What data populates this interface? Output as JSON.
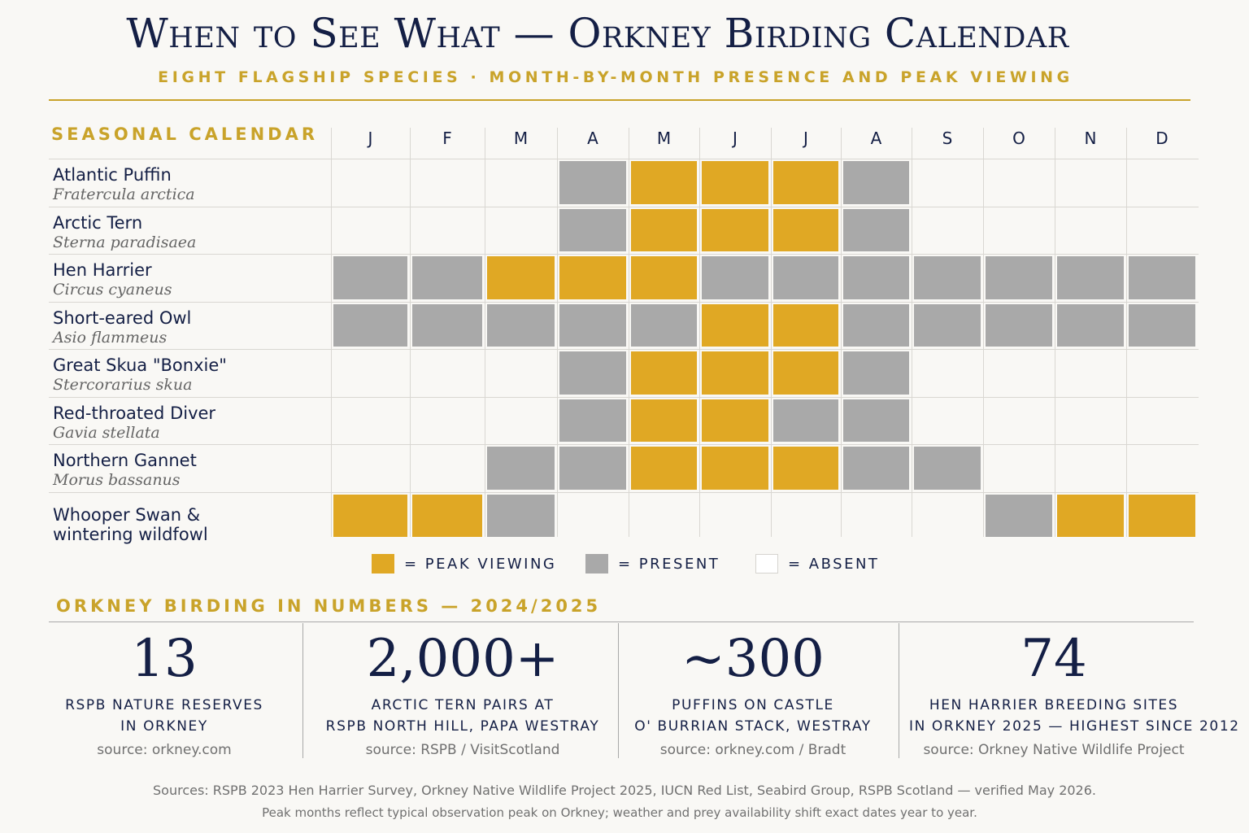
{
  "header": {
    "title": "When to See What — Orkney Birding Calendar",
    "subtitle": "EIGHT FLAGSHIP SPECIES · MONTH-BY-MONTH PRESENCE AND PEAK VIEWING"
  },
  "calendar_title": "SEASONAL CALENDAR",
  "colors": {
    "peak": "#e0a824",
    "present": "#a9a9a9",
    "absent": "#faf9f7",
    "accent": "#c9a32a",
    "navy": "#141f45"
  },
  "chart_data": {
    "type": "heatmap",
    "title": "SEASONAL CALENDAR",
    "months": [
      "J",
      "F",
      "M",
      "A",
      "M",
      "J",
      "J",
      "A",
      "S",
      "O",
      "N",
      "D"
    ],
    "status_key": {
      "2": "peak viewing",
      "1": "present",
      "0": "absent"
    },
    "species": [
      {
        "name": "Atlantic Puffin",
        "latin": "Fratercula arctica",
        "status": [
          0,
          0,
          0,
          1,
          2,
          2,
          2,
          1,
          0,
          0,
          0,
          0
        ]
      },
      {
        "name": "Arctic Tern",
        "latin": "Sterna paradisaea",
        "status": [
          0,
          0,
          0,
          1,
          2,
          2,
          2,
          1,
          0,
          0,
          0,
          0
        ]
      },
      {
        "name": "Hen Harrier",
        "latin": "Circus cyaneus",
        "status": [
          1,
          1,
          2,
          2,
          2,
          1,
          1,
          1,
          1,
          1,
          1,
          1
        ]
      },
      {
        "name": "Short-eared Owl",
        "latin": "Asio flammeus",
        "status": [
          1,
          1,
          1,
          1,
          1,
          2,
          2,
          1,
          1,
          1,
          1,
          1
        ]
      },
      {
        "name": "Great Skua \"Bonxie\"",
        "latin": "Stercorarius skua",
        "status": [
          0,
          0,
          0,
          1,
          2,
          2,
          2,
          1,
          0,
          0,
          0,
          0
        ]
      },
      {
        "name": "Red-throated Diver",
        "latin": "Gavia stellata",
        "status": [
          0,
          0,
          0,
          1,
          2,
          2,
          1,
          1,
          0,
          0,
          0,
          0
        ]
      },
      {
        "name": "Northern Gannet",
        "latin": "Morus bassanus",
        "status": [
          0,
          0,
          1,
          1,
          2,
          2,
          2,
          1,
          1,
          0,
          0,
          0
        ]
      },
      {
        "name": "Whooper Swan & wintering wildfowl",
        "name_lines": [
          "Whooper Swan &",
          "wintering wildfowl"
        ],
        "latin": "",
        "status": [
          2,
          2,
          1,
          0,
          0,
          0,
          0,
          0,
          0,
          1,
          2,
          2
        ]
      }
    ]
  },
  "legend": {
    "peak": "= PEAK VIEWING",
    "present": "= PRESENT",
    "absent": "= ABSENT"
  },
  "stats_title": "ORKNEY BIRDING IN NUMBERS — 2024/2025",
  "stats": [
    {
      "value": "13",
      "label_lines": [
        "RSPB NATURE RESERVES",
        "IN ORKNEY"
      ],
      "source": "source: orkney.com"
    },
    {
      "value": "2,000+",
      "label_lines": [
        "ARCTIC TERN PAIRS AT",
        "RSPB NORTH HILL, PAPA WESTRAY"
      ],
      "source": "source: RSPB / VisitScotland"
    },
    {
      "value": "~300",
      "label_lines": [
        "PUFFINS ON CASTLE",
        "O' BURRIAN STACK, WESTRAY"
      ],
      "source": "source: orkney.com / Bradt"
    },
    {
      "value": "74",
      "label_lines": [
        "HEN HARRIER BREEDING SITES",
        "IN ORKNEY 2025 — HIGHEST SINCE 2012"
      ],
      "source": "source: Orkney Native Wildlife Project"
    }
  ],
  "footer": {
    "line1": "Sources: RSPB 2023 Hen Harrier Survey, Orkney Native Wildlife Project 2025, IUCN Red List, Seabird Group, RSPB Scotland — verified May 2026.",
    "line2": "Peak months reflect typical observation peak on Orkney; weather and prey availability shift exact dates year to year."
  }
}
